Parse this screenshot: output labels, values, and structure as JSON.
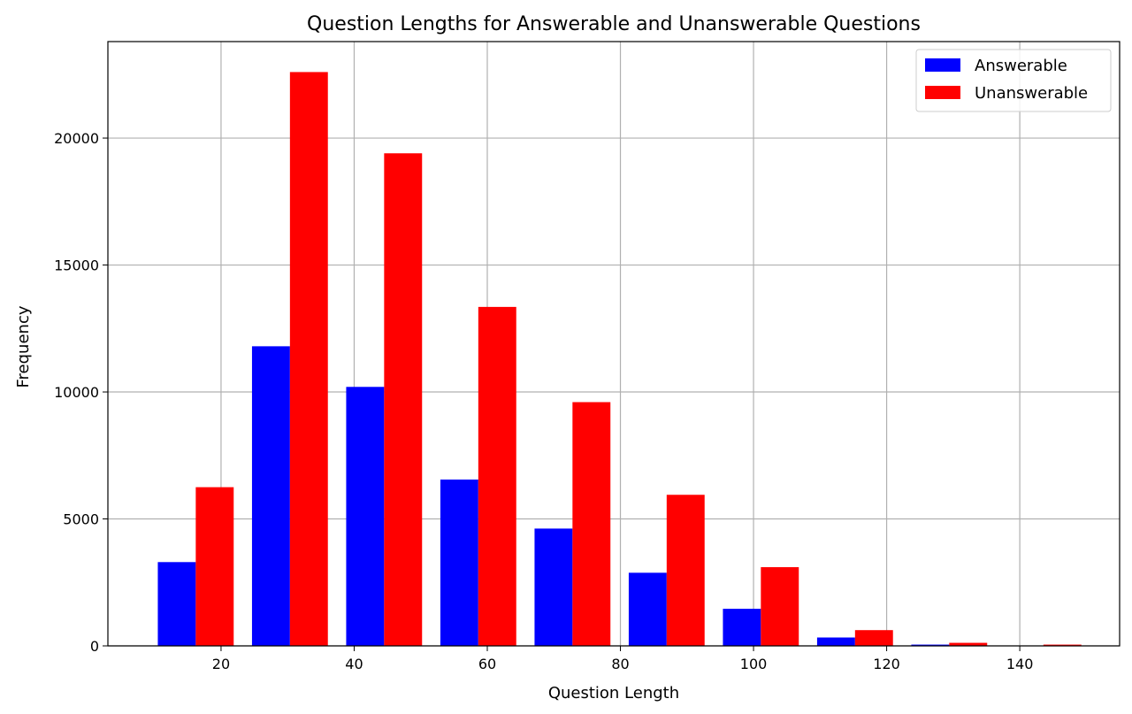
{
  "chart_data": {
    "type": "bar",
    "title": "Question Lengths for Answerable and Unanswerable Questions",
    "xlabel": "Question Length",
    "ylabel": "Frequency",
    "xlim": [
      3,
      155
    ],
    "ylim": [
      0,
      23800
    ],
    "xticks": [
      20,
      40,
      60,
      80,
      100,
      120,
      140
    ],
    "yticks": [
      0,
      5000,
      10000,
      15000,
      20000
    ],
    "grid": true,
    "legend_position": "top-right",
    "bar_width": 5.7,
    "series": [
      {
        "name": "Answerable",
        "color": "#0000ff",
        "x": [
          13.35,
          27.5,
          41.65,
          55.8,
          69.95,
          84.1,
          98.25,
          112.4,
          126.55,
          140.7
        ],
        "values": [
          3300,
          11800,
          10200,
          6550,
          4620,
          2880,
          1460,
          330,
          50,
          10
        ]
      },
      {
        "name": "Unanswerable",
        "color": "#ff0000",
        "x": [
          19.05,
          33.2,
          47.35,
          61.5,
          75.65,
          89.8,
          103.95,
          118.1,
          132.25,
          146.4
        ],
        "values": [
          6250,
          22600,
          19400,
          13350,
          9600,
          5950,
          3100,
          620,
          120,
          50
        ]
      }
    ]
  }
}
